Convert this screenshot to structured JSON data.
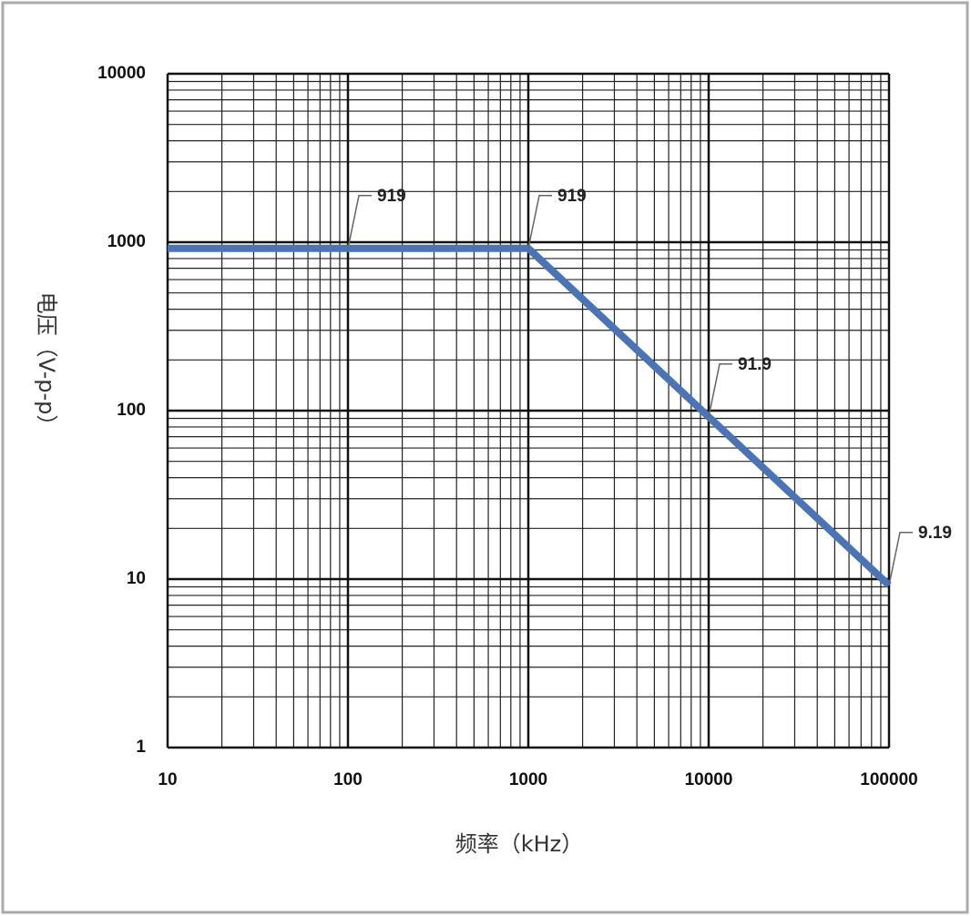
{
  "chart_data": {
    "type": "line",
    "x_label": "频率（kHz）",
    "y_label": "电压（V-p-p）",
    "x": [
      10,
      1000,
      100000
    ],
    "series": [
      {
        "color": "#4a74b5",
        "values": [
          919,
          919,
          9.19
        ]
      }
    ],
    "annotations": [
      {
        "x": 100,
        "value": 919
      },
      {
        "x": 1000,
        "value": 919
      },
      {
        "x": 10000,
        "value": 91.9
      },
      {
        "x": 100000,
        "value": 9.19
      }
    ],
    "xlim": [
      10,
      100000
    ],
    "ylim": [
      1,
      10000
    ],
    "xticks": [
      10,
      100,
      1000,
      10000,
      100000
    ],
    "yticks": [
      1,
      10,
      100,
      1000,
      10000
    ],
    "xlog": true,
    "ylog": true,
    "grid": true,
    "minor_grid_steps": [
      2,
      3,
      4,
      5,
      6,
      7,
      8,
      9
    ]
  }
}
